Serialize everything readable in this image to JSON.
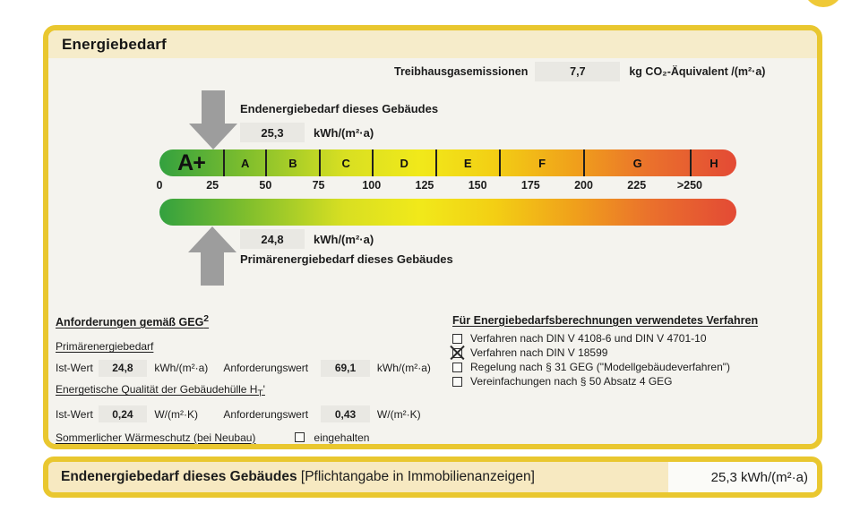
{
  "panel": {
    "title": "Energiebedarf"
  },
  "ghg": {
    "label": "Treibhausgasemissionen",
    "value": "7,7",
    "unit": "kg CO₂-Äquivalent /(m²·a)"
  },
  "end_energy": {
    "label": "Endenergiebedarf dieses Gebäudes",
    "value": "25,3",
    "unit": "kWh/(m²·a)"
  },
  "primary_energy": {
    "label": "Primärenergiebedarf dieses Gebäudes",
    "value": "24,8",
    "unit": "kWh/(m²·a)"
  },
  "scale": {
    "axis_total_units": 272,
    "classes": [
      {
        "label": "A+",
        "from": 0,
        "to": 30
      },
      {
        "label": "A",
        "from": 30,
        "to": 50
      },
      {
        "label": "B",
        "from": 50,
        "to": 75
      },
      {
        "label": "C",
        "from": 75,
        "to": 100
      },
      {
        "label": "D",
        "from": 100,
        "to": 130
      },
      {
        "label": "E",
        "from": 130,
        "to": 160
      },
      {
        "label": "F",
        "from": 160,
        "to": 200
      },
      {
        "label": "G",
        "from": 200,
        "to": 250
      },
      {
        "label": "H",
        "from": 250,
        "to": 272
      }
    ],
    "ticks": [
      {
        "label": "0",
        "value": 0
      },
      {
        "label": "25",
        "value": 25
      },
      {
        "label": "50",
        "value": 50
      },
      {
        "label": "75",
        "value": 75
      },
      {
        "label": "100",
        "value": 100
      },
      {
        "label": "125",
        "value": 125
      },
      {
        "label": "150",
        "value": 150
      },
      {
        "label": "175",
        "value": 175
      },
      {
        "label": "200",
        "value": 200
      },
      {
        "label": "225",
        "value": 225
      },
      {
        "label": ">250",
        "value": 250
      }
    ],
    "markers": [
      {
        "name": "Endenergiebedarf dieses Gebäudes",
        "value": 25.3
      },
      {
        "name": "Primärenergiebedarf dieses Gebäudes",
        "value": 24.8
      }
    ],
    "gradient": [
      {
        "color": "#33a13f",
        "pos": 0
      },
      {
        "color": "#7fbe2d",
        "pos": 15
      },
      {
        "color": "#d8df22",
        "pos": 32
      },
      {
        "color": "#f1e91a",
        "pos": 45
      },
      {
        "color": "#f3cf14",
        "pos": 58
      },
      {
        "color": "#f0a01b",
        "pos": 72
      },
      {
        "color": "#ea712c",
        "pos": 85
      },
      {
        "color": "#e34a35",
        "pos": 100
      }
    ],
    "arrow_color": "#9d9d9d"
  },
  "requirements": {
    "heading": "Anforderungen gemäß GEG",
    "heading_sup": "2",
    "primary": {
      "heading": "Primärenergiebedarf",
      "ist_label": "Ist-Wert",
      "ist_value": "24,8",
      "ist_unit": "kWh/(m²·a)",
      "req_label": "Anforderungswert",
      "req_value": "69,1",
      "req_unit": "kWh/(m²·a)"
    },
    "envelope": {
      "heading_prefix": "Energetische Qualität der Gebäudehülle H",
      "heading_sub": "T",
      "heading_suffix": "'",
      "ist_label": "Ist-Wert",
      "ist_value": "0,24",
      "ist_unit": "W/(m²·K)",
      "req_label": "Anforderungswert",
      "req_value": "0,43",
      "req_unit": "W/(m²·K)"
    },
    "summer": {
      "label": "Sommerlicher Wärmeschutz (bei Neubau)",
      "checkbox_label": "eingehalten",
      "checked": false
    }
  },
  "method": {
    "heading": "Für Energiebedarfsberechnungen verwendetes Verfahren",
    "options": [
      {
        "label": "Verfahren nach DIN V 4108-6 und DIN V 4701-10",
        "checked": false
      },
      {
        "label": "Verfahren nach DIN V 18599",
        "checked": true
      },
      {
        "label": "Regelung nach § 31 GEG (\"Modellgebäudeverfahren\")",
        "checked": false
      },
      {
        "label": "Vereinfachungen nach § 50 Absatz 4 GEG",
        "checked": false
      }
    ]
  },
  "footer": {
    "label_bold": "Endenergiebedarf dieses Gebäudes",
    "label_rest": " [Pflichtangabe in Immobilienanzeigen]",
    "value": "25,3 kWh/(m²·a)"
  }
}
